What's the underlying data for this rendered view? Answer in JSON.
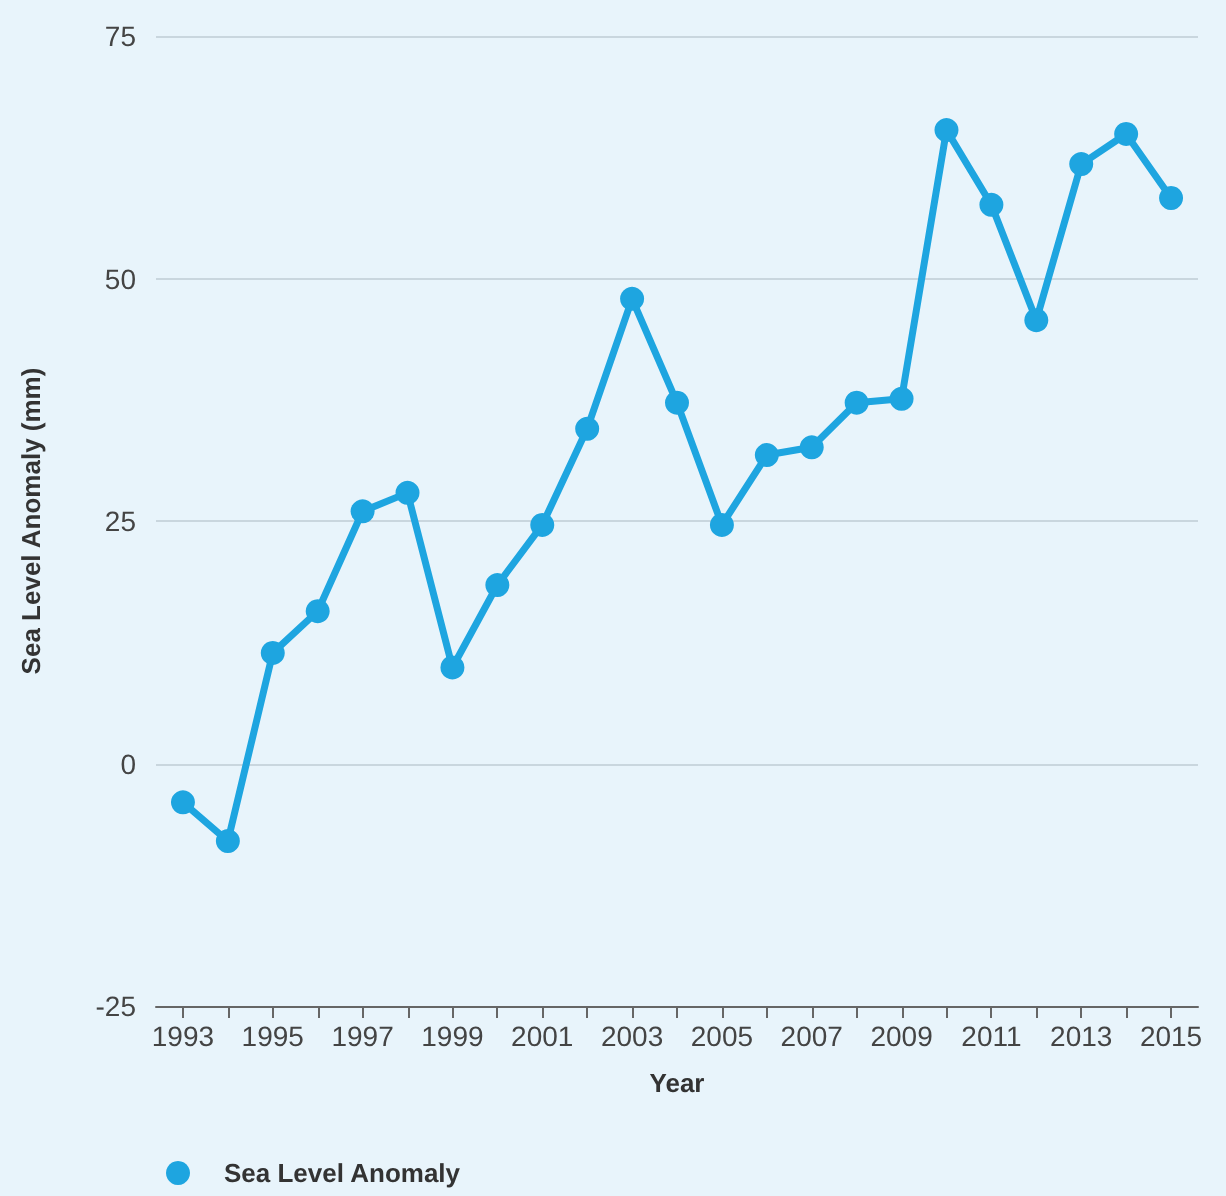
{
  "chart_data": {
    "type": "line",
    "xlabel": "Year",
    "ylabel": "Sea Level Anomaly (mm)",
    "x": [
      1993,
      1994,
      1995,
      1996,
      1997,
      1998,
      1999,
      2000,
      2001,
      2002,
      2003,
      2004,
      2005,
      2006,
      2007,
      2008,
      2009,
      2010,
      2011,
      2012,
      2013,
      2014,
      2015
    ],
    "series": [
      {
        "name": "Sea Level Anomaly",
        "color": "#1ea5e0",
        "values": [
          -4,
          -8,
          11.4,
          15.7,
          26,
          27.9,
          9.9,
          18.4,
          24.6,
          34.5,
          47.9,
          37.2,
          24.6,
          31.8,
          32.6,
          37.2,
          37.6,
          65.3,
          57.6,
          45.7,
          61.8,
          64.9,
          58.3
        ]
      }
    ],
    "xlim": [
      1992.4,
      2015.6
    ],
    "xticks": [
      1993,
      {
        "value": 1994,
        "label": null
      },
      1995,
      {
        "value": 1996,
        "label": null
      },
      1997,
      {
        "value": 1998,
        "label": null
      },
      1999,
      {
        "value": 2000,
        "label": null
      },
      2001,
      {
        "value": 2002,
        "label": null
      },
      2003,
      {
        "value": 2004,
        "label": null
      },
      2005,
      {
        "value": 2006,
        "label": null
      },
      2007,
      {
        "value": 2008,
        "label": null
      },
      2009,
      {
        "value": 2010,
        "label": null
      },
      2011,
      {
        "value": 2012,
        "label": null
      },
      2013,
      {
        "value": 2014,
        "label": null
      },
      2015
    ],
    "ylim": [
      -25,
      75
    ],
    "yticks": [
      -25,
      0,
      25,
      50,
      75
    ],
    "grid": "y",
    "legend": "bottom left",
    "marker": "circle",
    "line_style": "solid"
  }
}
